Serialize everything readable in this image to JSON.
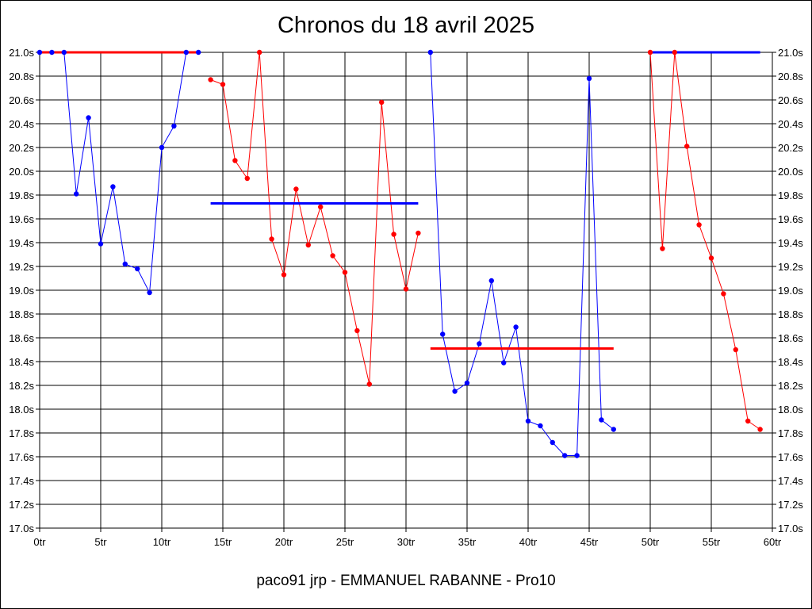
{
  "chart_data": {
    "type": "line",
    "title": "Chronos du 18 avril 2025",
    "footer": "paco91 jrp - EMMANUEL RABANNE - Pro10",
    "xlabel": "",
    "ylabel": "",
    "xlim": [
      0,
      60
    ],
    "ylim": [
      17.0,
      21.0
    ],
    "grid": true,
    "x_ticks": [
      {
        "v": 0,
        "label": "0tr"
      },
      {
        "v": 5,
        "label": "5tr"
      },
      {
        "v": 10,
        "label": "10tr"
      },
      {
        "v": 15,
        "label": "15tr"
      },
      {
        "v": 20,
        "label": "20tr"
      },
      {
        "v": 25,
        "label": "25tr"
      },
      {
        "v": 30,
        "label": "30tr"
      },
      {
        "v": 35,
        "label": "35tr"
      },
      {
        "v": 40,
        "label": "40tr"
      },
      {
        "v": 45,
        "label": "45tr"
      },
      {
        "v": 50,
        "label": "50tr"
      },
      {
        "v": 55,
        "label": "55tr"
      },
      {
        "v": 60,
        "label": "60tr"
      }
    ],
    "y_ticks": [
      {
        "v": 17.0,
        "label": "17.0s"
      },
      {
        "v": 17.2,
        "label": "17.2s"
      },
      {
        "v": 17.4,
        "label": "17.4s"
      },
      {
        "v": 17.6,
        "label": "17.6s"
      },
      {
        "v": 17.8,
        "label": "17.8s"
      },
      {
        "v": 18.0,
        "label": "18.0s"
      },
      {
        "v": 18.2,
        "label": "18.2s"
      },
      {
        "v": 18.4,
        "label": "18.4s"
      },
      {
        "v": 18.6,
        "label": "18.6s"
      },
      {
        "v": 18.8,
        "label": "18.8s"
      },
      {
        "v": 19.0,
        "label": "19.0s"
      },
      {
        "v": 19.2,
        "label": "19.2s"
      },
      {
        "v": 19.4,
        "label": "19.4s"
      },
      {
        "v": 19.6,
        "label": "19.6s"
      },
      {
        "v": 19.8,
        "label": "19.8s"
      },
      {
        "v": 20.0,
        "label": "20.0s"
      },
      {
        "v": 20.2,
        "label": "20.2s"
      },
      {
        "v": 20.4,
        "label": "20.4s"
      },
      {
        "v": 20.6,
        "label": "20.6s"
      },
      {
        "v": 20.8,
        "label": "20.8s"
      },
      {
        "v": 21.0,
        "label": "21.0s"
      }
    ],
    "series": [
      {
        "color": "#0000ff",
        "x": [
          0,
          1,
          2,
          3,
          4,
          5,
          6,
          7,
          8,
          9,
          10,
          11,
          12,
          13
        ],
        "y": [
          21.0,
          21.0,
          21.0,
          19.81,
          20.45,
          19.39,
          19.87,
          19.22,
          19.18,
          18.98,
          20.2,
          20.38,
          21.0,
          21.0
        ]
      },
      {
        "color": "#ff0000",
        "x": [
          14,
          15,
          16,
          17,
          18,
          19,
          20,
          21,
          22,
          23,
          24,
          25,
          26,
          27,
          28,
          29,
          30,
          31
        ],
        "y": [
          20.77,
          20.73,
          20.09,
          19.94,
          21.0,
          19.43,
          19.13,
          19.85,
          19.38,
          19.7,
          19.29,
          19.15,
          18.66,
          18.21,
          20.58,
          19.47,
          19.01,
          19.48
        ]
      },
      {
        "color": "#0000ff",
        "x": [
          32,
          33,
          34,
          35,
          36,
          37,
          38,
          39,
          40,
          41,
          42,
          43,
          44,
          45,
          46,
          47
        ],
        "y": [
          21.0,
          18.63,
          18.15,
          18.22,
          18.55,
          19.08,
          18.39,
          18.69,
          17.9,
          17.86,
          17.72,
          17.61,
          17.61,
          20.78,
          17.91,
          17.83
        ]
      },
      {
        "color": "#ff0000",
        "x": [
          50,
          51,
          52,
          53,
          54,
          55,
          56,
          57,
          58,
          59
        ],
        "y": [
          21.0,
          19.35,
          21.0,
          20.21,
          19.55,
          19.27,
          18.97,
          18.5,
          17.9,
          17.83
        ]
      }
    ],
    "average_lines": [
      {
        "color": "#ff0000",
        "x_start": 0,
        "x_end": 13,
        "y": 21.0
      },
      {
        "color": "#0000ff",
        "x_start": 14,
        "x_end": 31,
        "y": 19.73
      },
      {
        "color": "#ff0000",
        "x_start": 32,
        "x_end": 47,
        "y": 18.51
      },
      {
        "color": "#0000ff",
        "x_start": 50,
        "x_end": 59,
        "y": 21.0
      }
    ]
  }
}
